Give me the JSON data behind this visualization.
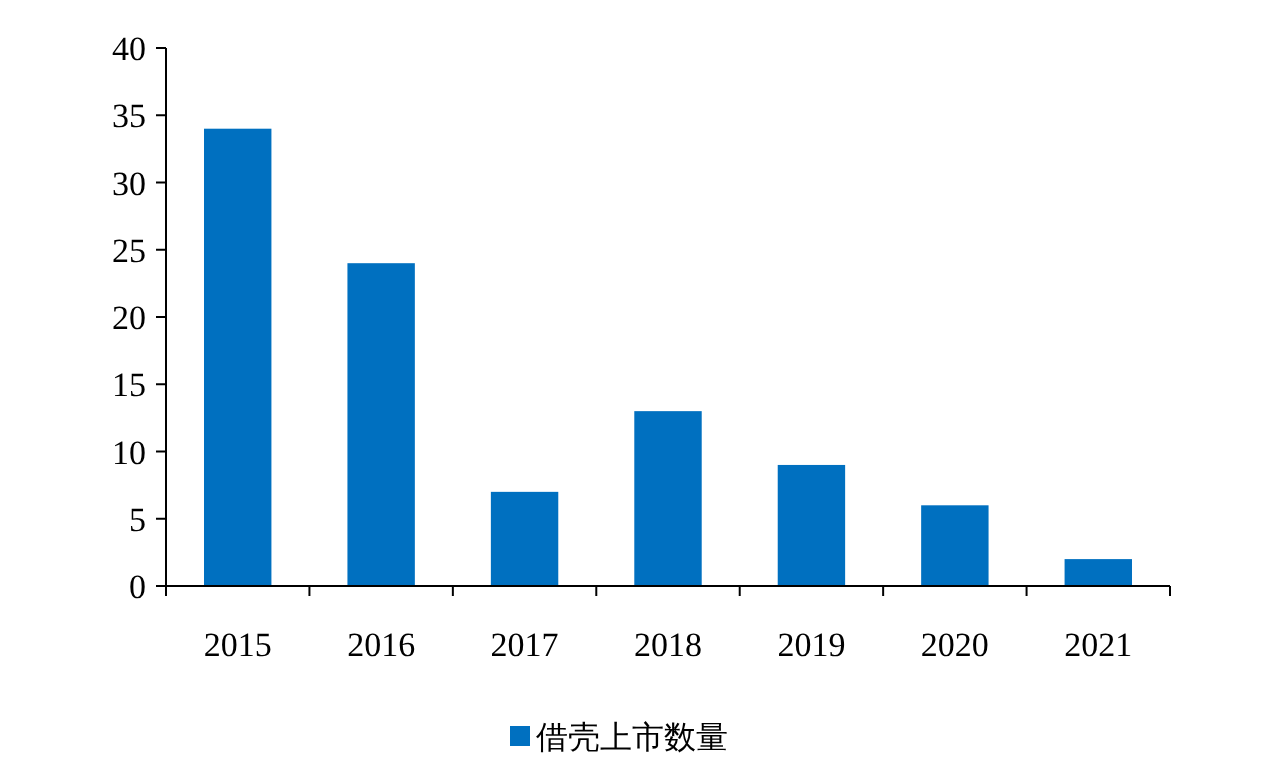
{
  "chart_data": {
    "type": "bar",
    "categories": [
      "2015",
      "2016",
      "2017",
      "2018",
      "2019",
      "2020",
      "2021"
    ],
    "series": [
      {
        "name": "借壳上市数量",
        "color": "#0070c0",
        "values": [
          34,
          24,
          7,
          13,
          9,
          6,
          2
        ]
      }
    ],
    "ylim": [
      0,
      40
    ],
    "yticks": [
      0,
      5,
      10,
      15,
      20,
      25,
      30,
      35,
      40
    ],
    "legend": "bottom"
  }
}
